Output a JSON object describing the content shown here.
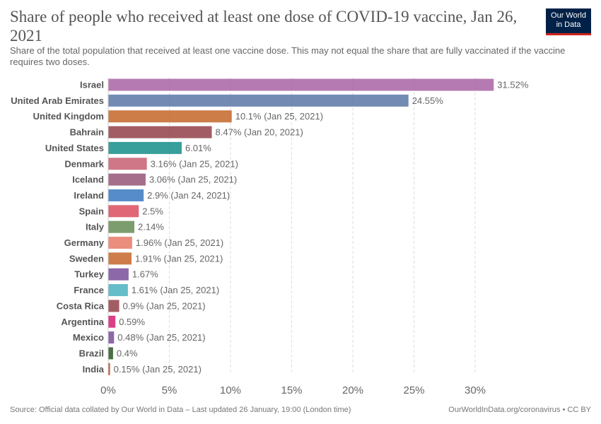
{
  "title": "Share of people who received at least one dose of COVID-19 vaccine, Jan 26, 2021",
  "subtitle": "Share of the total population that received at least one vaccine dose. This may not equal the share that are fully vaccinated if the vaccine requires two doses.",
  "logo": {
    "line1": "Our World",
    "line2": "in Data"
  },
  "footer": {
    "source": "Source: Official data collated by Our World in Data – Last updated 26 January, 19:00 (London time)",
    "link": "OurWorldInData.org/coronavirus • CC BY"
  },
  "chart_data": {
    "type": "bar",
    "orientation": "horizontal",
    "title": "Share of people who received at least one dose of COVID-19 vaccine, Jan 26, 2021",
    "xlim": [
      0,
      33
    ],
    "x_ticks": [
      0,
      5,
      10,
      15,
      20,
      25,
      30
    ],
    "x_tick_labels": [
      "0%",
      "5%",
      "10%",
      "15%",
      "20%",
      "25%",
      "30%"
    ],
    "grid": "vertical dashed",
    "categories": [
      "Israel",
      "United Arab Emirates",
      "United Kingdom",
      "Bahrain",
      "United States",
      "Denmark",
      "Iceland",
      "Ireland",
      "Spain",
      "Italy",
      "Germany",
      "Sweden",
      "Turkey",
      "France",
      "Costa Rica",
      "Argentina",
      "Mexico",
      "Brazil",
      "India"
    ],
    "values": [
      31.52,
      24.55,
      10.1,
      8.47,
      6.01,
      3.16,
      3.06,
      2.9,
      2.5,
      2.14,
      1.96,
      1.91,
      1.67,
      1.61,
      0.9,
      0.59,
      0.48,
      0.4,
      0.15
    ],
    "labels": [
      "31.52%",
      "24.55%",
      "10.1% (Jan 25, 2021)",
      "8.47% (Jan 20, 2021)",
      "6.01%",
      "3.16% (Jan 25, 2021)",
      "3.06% (Jan 25, 2021)",
      "2.9% (Jan 24, 2021)",
      "2.5%",
      "2.14%",
      "1.96% (Jan 25, 2021)",
      "1.91% (Jan 25, 2021)",
      "1.67%",
      "1.61% (Jan 25, 2021)",
      "0.9% (Jan 25, 2021)",
      "0.59%",
      "0.48% (Jan 25, 2021)",
      "0.4%",
      "0.15% (Jan 25, 2021)"
    ],
    "colors": [
      "#a2559c",
      "#4c6a9c",
      "#be5915",
      "#883039",
      "#00847e",
      "#c15065",
      "#8c4569",
      "#286bbb",
      "#d73c50",
      "#578145",
      "#e56e5a",
      "#c05917",
      "#6d3e91",
      "#38aaba",
      "#883039",
      "#cf0a66",
      "#6d3e91",
      "#18470f",
      "#b13507"
    ]
  }
}
